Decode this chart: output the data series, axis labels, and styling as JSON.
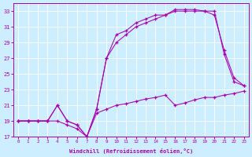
{
  "xlabel": "Windchill (Refroidissement éolien,°C)",
  "background_color": "#cceeff",
  "line_color": "#aa00aa",
  "ylim": [
    17,
    34
  ],
  "xlim": [
    -0.5,
    23.5
  ],
  "yticks": [
    17,
    19,
    21,
    23,
    25,
    27,
    29,
    31,
    33
  ],
  "xticks": [
    0,
    1,
    2,
    3,
    4,
    5,
    6,
    7,
    8,
    9,
    10,
    11,
    12,
    13,
    14,
    15,
    16,
    17,
    18,
    19,
    20,
    21,
    22,
    23
  ],
  "series1_x": [
    0,
    1,
    2,
    3,
    4,
    5,
    6,
    7,
    8,
    9,
    10,
    11,
    12,
    13,
    14,
    15,
    16,
    17,
    18,
    19,
    20,
    21,
    22,
    23
  ],
  "series1_y": [
    19,
    19,
    19,
    19,
    19,
    18.5,
    18,
    17,
    20,
    20.5,
    21,
    21.2,
    21.5,
    21.8,
    22,
    22.3,
    21,
    21.3,
    21.7,
    22,
    22,
    22.3,
    22.5,
    22.8
  ],
  "series2_x": [
    0,
    1,
    2,
    3,
    4,
    5,
    6,
    7,
    8,
    9,
    10,
    11,
    12,
    13,
    14,
    15,
    16,
    17,
    18,
    19,
    20,
    21,
    22,
    23
  ],
  "series2_y": [
    19,
    19,
    19,
    19,
    21,
    19,
    18.5,
    17,
    20.5,
    27,
    30,
    30.5,
    31.5,
    32,
    32.5,
    32.5,
    33.2,
    33.2,
    33.2,
    33,
    33,
    27.5,
    24,
    23.5
  ],
  "series3_x": [
    0,
    1,
    2,
    3,
    4,
    5,
    6,
    7,
    8,
    9,
    10,
    11,
    12,
    13,
    14,
    15,
    16,
    17,
    18,
    19,
    20,
    21,
    22,
    23
  ],
  "series3_y": [
    19,
    19,
    19,
    19,
    21,
    19,
    18.5,
    17,
    20.5,
    27,
    29,
    30,
    31,
    31.5,
    32,
    32.5,
    33,
    33,
    33,
    33,
    32.5,
    28,
    24.5,
    23.5
  ]
}
